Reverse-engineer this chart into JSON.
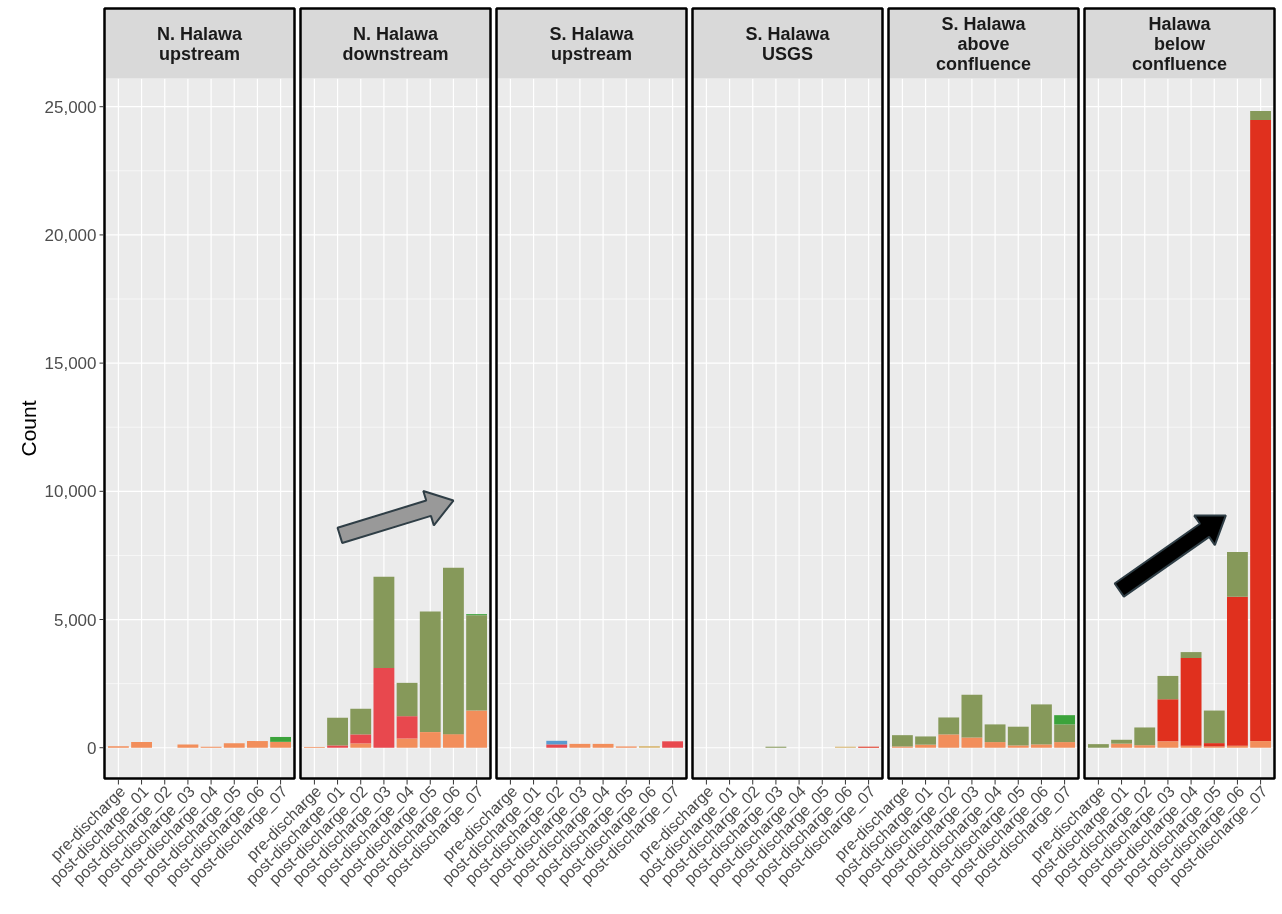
{
  "chart_data": [
    {
      "type": "bar",
      "title": "N. Halawa\nupstream",
      "ylabel": "Count",
      "stacked": true,
      "grid": true,
      "categories": [
        "pre-discharge",
        "post-discharge_01",
        "post-discharge_02",
        "post-discharge_03",
        "post-discharge_04",
        "post-discharge_05",
        "post-discharge_06",
        "post-discharge_07"
      ],
      "ylim": [
        -1200,
        26100
      ],
      "yticks": [
        {
          "value": 0,
          "label": "0"
        },
        {
          "value": 5000,
          "label": "5,000"
        },
        {
          "value": 10000,
          "label": "10,000"
        },
        {
          "value": 15000,
          "label": "15,000"
        },
        {
          "value": 20000,
          "label": "20,000"
        },
        {
          "value": 25000,
          "label": "25,000"
        }
      ],
      "series": [
        {
          "color": "#f28e5b",
          "values": [
            60,
            220,
            null,
            130,
            40,
            170,
            260,
            230
          ]
        },
        {
          "color": "#3ba33b",
          "values": [
            null,
            null,
            null,
            null,
            null,
            null,
            null,
            190
          ]
        }
      ]
    },
    {
      "type": "bar",
      "title": "N. Halawa\ndownstream",
      "stacked": true,
      "grid": true,
      "tick_labels": "x",
      "categories": [
        "pre-discharge",
        "post-discharge_01",
        "post-discharge_02",
        "post-discharge_03",
        "post-discharge_04",
        "post-discharge_05",
        "post-discharge_06",
        "post-discharge_07"
      ],
      "ylim": [
        -1200,
        26100
      ],
      "yticks": [
        0,
        5000,
        10000,
        15000,
        20000,
        25000
      ],
      "series": [
        {
          "color": "#f28e5b",
          "values": [
            30,
            null,
            170,
            null,
            360,
            610,
            530,
            1450
          ]
        },
        {
          "color": "#e8484e",
          "values": [
            null,
            90,
            350,
            3110,
            870,
            null,
            null,
            null
          ]
        },
        {
          "color": "#86995a",
          "values": [
            null,
            1080,
            1000,
            3560,
            1300,
            4700,
            6490,
            3720
          ]
        },
        {
          "color": "#3ba33b",
          "values": [
            null,
            null,
            null,
            null,
            null,
            null,
            null,
            40
          ]
        }
      ]
    },
    {
      "type": "bar",
      "title": "S. Halawa\nupstream",
      "stacked": true,
      "grid": true,
      "tick_labels": "x",
      "categories": [
        "pre-discharge",
        "post-discharge_01",
        "post-discharge_02",
        "post-discharge_03",
        "post-discharge_04",
        "post-discharge_05",
        "post-discharge_06",
        "post-discharge_07"
      ],
      "ylim": [
        -1200,
        26100
      ],
      "yticks": [
        0,
        5000,
        10000,
        15000,
        20000,
        25000
      ],
      "series": [
        {
          "color": "#f28e5b",
          "values": [
            null,
            null,
            null,
            150,
            150,
            50,
            null,
            null
          ]
        },
        {
          "color": "#e8484e",
          "values": [
            null,
            null,
            130,
            null,
            null,
            null,
            null,
            250
          ]
        },
        {
          "color": "#5b9bd0",
          "values": [
            null,
            null,
            140,
            null,
            null,
            null,
            null,
            null
          ]
        },
        {
          "color": "#d6b36a",
          "values": [
            null,
            null,
            null,
            null,
            null,
            null,
            60,
            null
          ]
        }
      ]
    },
    {
      "type": "bar",
      "title": "S. Halawa\nUSGS",
      "stacked": true,
      "grid": true,
      "tick_labels": "x",
      "categories": [
        "pre-discharge",
        "post-discharge_01",
        "post-discharge_02",
        "post-discharge_03",
        "post-discharge_04",
        "post-discharge_05",
        "post-discharge_06",
        "post-discharge_07"
      ],
      "ylim": [
        -1200,
        26100
      ],
      "yticks": [
        0,
        5000,
        10000,
        15000,
        20000,
        25000
      ],
      "series": [
        {
          "color": "#e0301e",
          "values": [
            null,
            null,
            null,
            null,
            null,
            null,
            null,
            40
          ]
        },
        {
          "color": "#86995a",
          "values": [
            null,
            null,
            null,
            40,
            null,
            null,
            null,
            null
          ]
        },
        {
          "color": "#d6b36a",
          "values": [
            null,
            null,
            null,
            null,
            null,
            null,
            40,
            null
          ]
        }
      ]
    },
    {
      "type": "bar",
      "title": "S. Halawa\nabove\nconfluence",
      "stacked": true,
      "grid": true,
      "tick_labels": "x",
      "categories": [
        "pre-discharge",
        "post-discharge_01",
        "post-discharge_02",
        "post-discharge_03",
        "post-discharge_04",
        "post-discharge_05",
        "post-discharge_06",
        "post-discharge_07"
      ],
      "ylim": [
        -1200,
        26100
      ],
      "yticks": [
        0,
        5000,
        10000,
        15000,
        20000,
        25000
      ],
      "series": [
        {
          "color": "#f28e5b",
          "values": [
            50,
            120,
            520,
            400,
            220,
            90,
            130,
            220
          ]
        },
        {
          "color": "#86995a",
          "values": [
            440,
            320,
            660,
            1670,
            690,
            730,
            1560,
            690
          ]
        },
        {
          "color": "#3ba33b",
          "values": [
            null,
            null,
            null,
            null,
            null,
            null,
            null,
            360
          ]
        }
      ]
    },
    {
      "type": "bar",
      "title": "Halawa\nbelow\nconfluence",
      "stacked": true,
      "grid": true,
      "tick_labels": "x",
      "categories": [
        "pre-discharge",
        "post-discharge_01",
        "post-discharge_02",
        "post-discharge_03",
        "post-discharge_04",
        "post-discharge_05",
        "post-discharge_06",
        "post-discharge_07"
      ],
      "ylim": [
        -1200,
        26100
      ],
      "yticks": [
        0,
        5000,
        10000,
        15000,
        20000,
        25000
      ],
      "series": [
        {
          "color": "#f28e5b",
          "values": [
            null,
            160,
            100,
            250,
            80,
            50,
            80,
            260
          ]
        },
        {
          "color": "#e0301e",
          "values": [
            null,
            null,
            null,
            1640,
            3420,
            130,
            5810,
            24220
          ]
        },
        {
          "color": "#86995a",
          "values": [
            140,
            150,
            690,
            910,
            230,
            1270,
            1740,
            350
          ]
        }
      ]
    }
  ]
}
